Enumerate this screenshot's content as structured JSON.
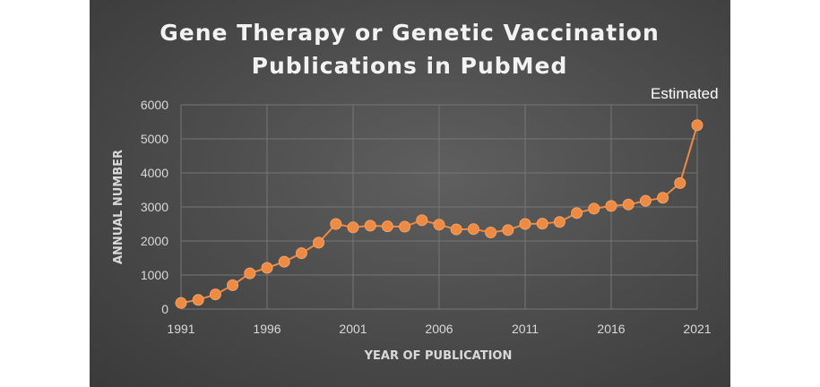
{
  "chart_data": {
    "type": "line",
    "title_lines": [
      "Gene Therapy or Genetic Vaccination",
      "Publications in PubMed"
    ],
    "xlabel": "YEAR OF PUBLICATION",
    "ylabel": "ANNUAL NUMBER",
    "xlim": [
      1991,
      2021
    ],
    "ylim": [
      0,
      6000
    ],
    "x_ticks": [
      1991,
      1996,
      2001,
      2006,
      2011,
      2016,
      2021
    ],
    "y_ticks": [
      0,
      1000,
      2000,
      3000,
      4000,
      5000,
      6000
    ],
    "grid": true,
    "series_color": "#ED8A44",
    "series": [
      {
        "x": [
          1991,
          1992,
          1993,
          1994,
          1995,
          1996,
          1997,
          1998,
          1999,
          2000,
          2001,
          2002,
          2003,
          2004,
          2005,
          2006,
          2007,
          2008,
          2009,
          2010,
          2011,
          2012,
          2013,
          2014,
          2015,
          2016,
          2017,
          2018,
          2019,
          2020,
          2021
        ],
        "values": [
          180,
          270,
          430,
          700,
          1050,
          1210,
          1390,
          1640,
          1950,
          2500,
          2400,
          2450,
          2430,
          2420,
          2610,
          2480,
          2340,
          2350,
          2250,
          2320,
          2500,
          2510,
          2560,
          2820,
          2950,
          3030,
          3070,
          3180,
          3270,
          3700,
          5400
        ]
      }
    ],
    "annotations": [
      {
        "text": "Estimated",
        "x": 2021,
        "y": 5400
      }
    ]
  }
}
